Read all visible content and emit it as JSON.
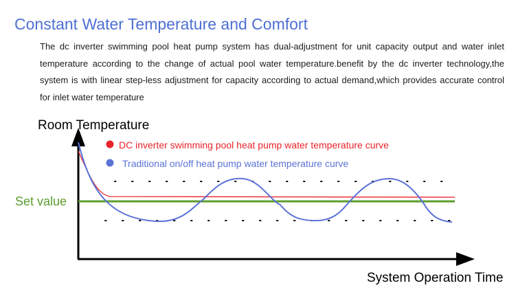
{
  "header": {
    "title": "Constant Water Temperature and Comfort",
    "description": "The dc inverter swimming pool heat pump system has dual-adjustment for unit capacity output and water inlet temperature according to the change of actual pool water temperature.benefit by the dc inverter  technology,the system is with linear step-less adjustment for capacity according to actual demand,which provides accurate control for inlet water temperature"
  },
  "chart_data": {
    "type": "line",
    "title": "",
    "ylabel": "Room Temperature",
    "xlabel": "System Operation Time",
    "set_value_label": "Set value",
    "legend_position": "top-left",
    "grid": false,
    "series": [
      {
        "name": "DC inverter swimming pool heat pump water temperature curve",
        "color": "#e8232a"
      },
      {
        "name": "Traditional on/off heat pump water temperature curve",
        "color": "#5b72d6"
      }
    ],
    "set_value_color": "#5c9e2e",
    "axis_color": "#000000"
  }
}
